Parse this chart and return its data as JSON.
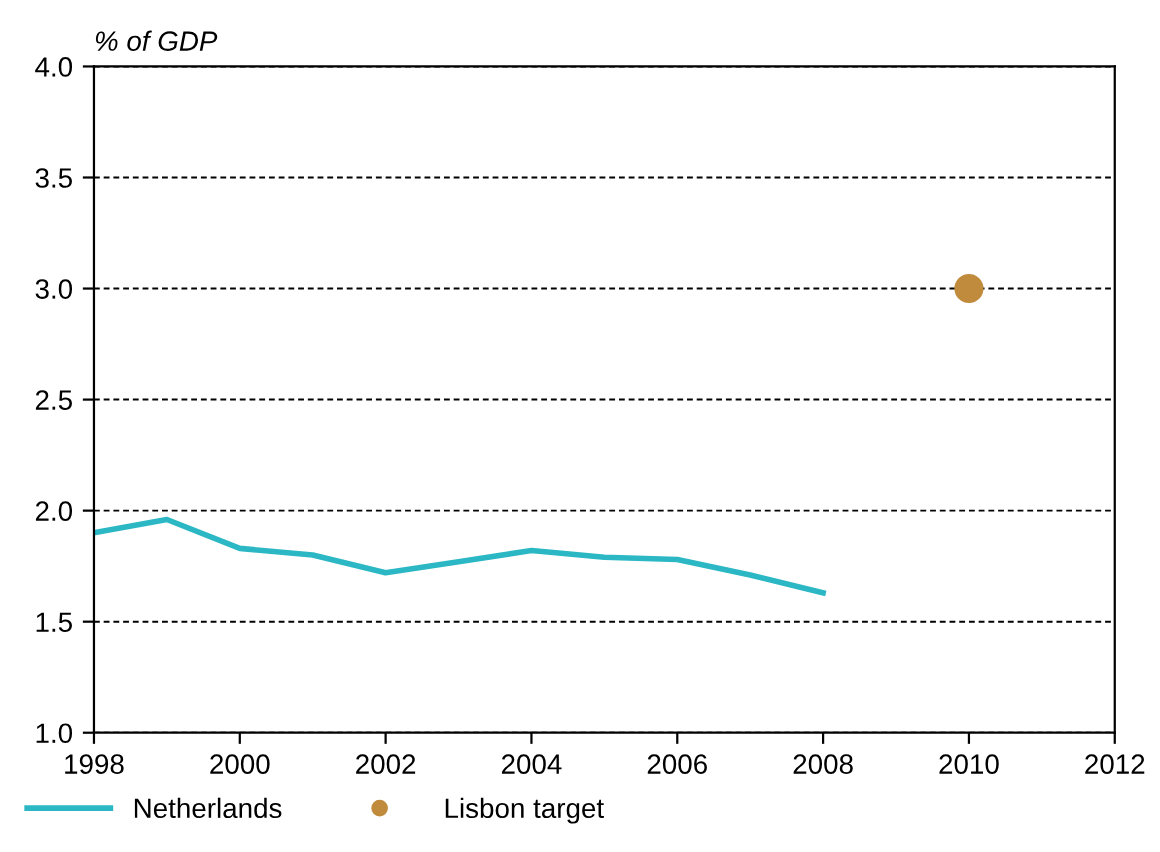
{
  "chart_data": {
    "type": "line",
    "ylabel": "% of GDP",
    "series": [
      {
        "name": "Netherlands",
        "color": "#2bb8c4",
        "x": [
          1998,
          1999,
          2000,
          2001,
          2002,
          2003,
          2004,
          2005,
          2006,
          2007,
          2008
        ],
        "values": [
          1.9,
          1.96,
          1.83,
          1.8,
          1.72,
          1.77,
          1.82,
          1.79,
          1.78,
          1.71,
          1.63
        ]
      },
      {
        "name": "Lisbon target",
        "type": "scatter",
        "color": "#c08b3c",
        "marker": "circle",
        "x": [
          2010
        ],
        "values": [
          3.0
        ]
      }
    ],
    "xlim": [
      1998,
      2012
    ],
    "xticks": [
      1998,
      2000,
      2002,
      2004,
      2006,
      2008,
      2010,
      2012
    ],
    "ylim": [
      1.0,
      4.0
    ],
    "yticks": [
      {
        "value": 1,
        "label": "1.0"
      },
      1.5,
      {
        "value": 2,
        "label": "2.0"
      },
      2.5,
      {
        "value": 3,
        "label": "3.0"
      },
      3.5,
      {
        "value": 4,
        "label": "4.0"
      }
    ],
    "grid": "y",
    "legend": "bottom"
  }
}
